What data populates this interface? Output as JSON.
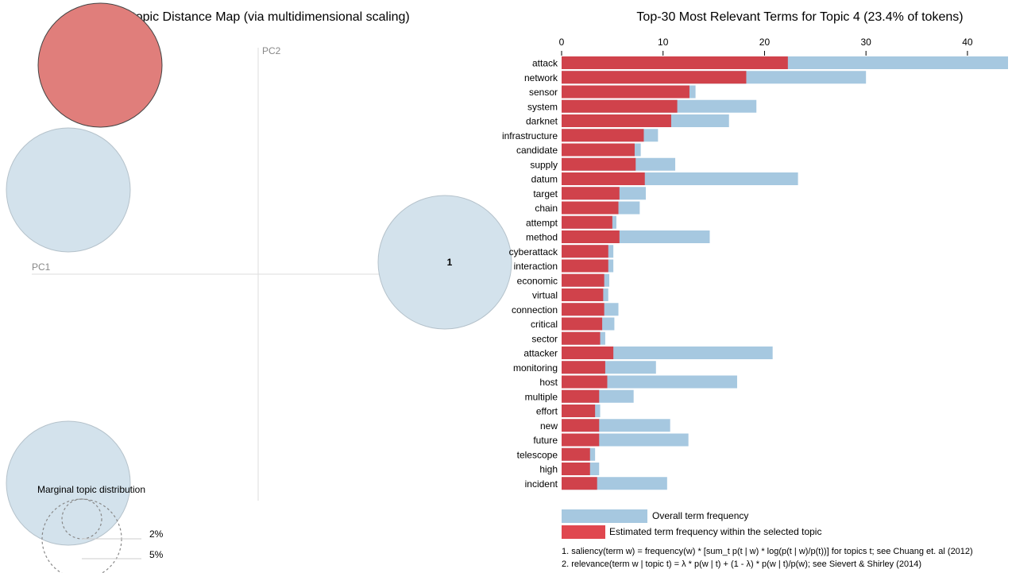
{
  "colors": {
    "overall": "#a6c8e0",
    "estimated": "#d0424b",
    "selected_circle": "#e07e7b",
    "circle": "#d3e2ec",
    "circle_stroke": "#b5c2cb",
    "axis": "#dddddd",
    "legend_estimated": "#e0474f"
  },
  "chart_data": [
    {
      "type": "scatter",
      "title": "Intertopic Distance Map (via multidimensional scaling)",
      "xlabel": "PC1",
      "ylabel": "PC2",
      "topics": [
        {
          "label": "",
          "selected": true
        },
        {
          "label": "",
          "selected": false
        },
        {
          "label": "1",
          "selected": false
        },
        {
          "label": "",
          "selected": false
        }
      ],
      "marginal": {
        "title": "Marginal topic distribution",
        "labels": [
          "2%",
          "5%"
        ]
      }
    },
    {
      "type": "bar",
      "title": "Top-30 Most Relevant Terms for Topic 4 (23.4% of tokens)",
      "xlim": [
        0,
        44
      ],
      "ticks": [
        0,
        10,
        20,
        30,
        40
      ],
      "categories": [
        "attack",
        "network",
        "sensor",
        "system",
        "darknet",
        "infrastructure",
        "candidate",
        "supply",
        "datum",
        "target",
        "chain",
        "attempt",
        "method",
        "cyberattack",
        "interaction",
        "economic",
        "virtual",
        "connection",
        "critical",
        "sector",
        "attacker",
        "monitoring",
        "host",
        "multiple",
        "effort",
        "new",
        "future",
        "telescope",
        "high",
        "incident"
      ],
      "series": [
        {
          "name": "Overall term frequency",
          "values": [
            44,
            30,
            13.2,
            19.2,
            16.5,
            9.5,
            7.8,
            11.2,
            23.3,
            8.3,
            7.7,
            5.4,
            14.6,
            5.1,
            5.1,
            4.7,
            4.6,
            5.6,
            5.2,
            4.3,
            20.8,
            9.3,
            17.3,
            7.1,
            3.8,
            10.7,
            12.5,
            3.3,
            3.7,
            10.4
          ]
        },
        {
          "name": "Estimated term frequency within the selected topic",
          "values": [
            22.3,
            18.2,
            12.6,
            11.4,
            10.8,
            8.1,
            7.2,
            7.3,
            8.2,
            5.7,
            5.6,
            5.0,
            5.7,
            4.6,
            4.6,
            4.2,
            4.1,
            4.2,
            4.0,
            3.8,
            5.1,
            4.3,
            4.5,
            3.7,
            3.3,
            3.7,
            3.7,
            2.8,
            2.8,
            3.5
          ]
        }
      ],
      "footnotes": [
        "1. saliency(term w) = frequency(w) * [sum_t p(t | w) * log(p(t | w)/p(t))] for topics t; see Chuang et. al (2012)",
        "2. relevance(term w | topic t) = λ * p(w | t) + (1 - λ) * p(w | t)/p(w); see Sievert & Shirley (2014)"
      ]
    }
  ]
}
